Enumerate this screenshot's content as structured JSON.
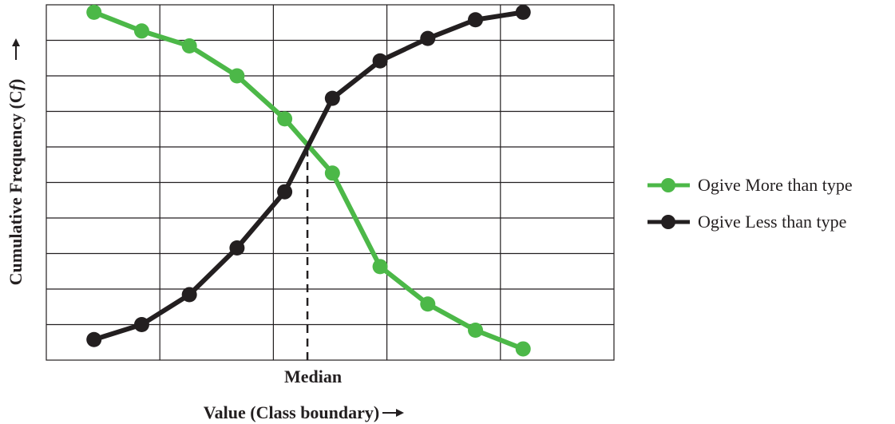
{
  "chart_data": {
    "type": "line",
    "title": "",
    "xlabel": "Value (Class boundary)",
    "ylabel_main": "Cumulative Frequency (C",
    "ylabel_italic": "f",
    "ylabel_tail": ")",
    "median_label": "Median",
    "xlim": [
      0,
      5
    ],
    "ylim": [
      0,
      9.5
    ],
    "grid": true,
    "legend_position": "right",
    "median_x": 2.3,
    "series": [
      {
        "name": "Ogive More than type",
        "color": "#4cb848",
        "x": [
          0.42,
          0.84,
          1.26,
          1.68,
          2.1,
          2.52,
          2.94,
          3.36,
          3.78,
          4.2
        ],
        "y": [
          9.3,
          8.8,
          8.4,
          7.6,
          6.45,
          5.0,
          2.5,
          1.5,
          0.8,
          0.3
        ]
      },
      {
        "name": "Ogive Less than type",
        "color": "#231f20",
        "x": [
          0.42,
          0.84,
          1.26,
          1.68,
          2.1,
          2.52,
          2.94,
          3.36,
          3.78,
          4.2
        ],
        "y": [
          0.55,
          0.95,
          1.75,
          3.0,
          4.5,
          7.0,
          8.0,
          8.6,
          9.1,
          9.3
        ]
      }
    ]
  }
}
